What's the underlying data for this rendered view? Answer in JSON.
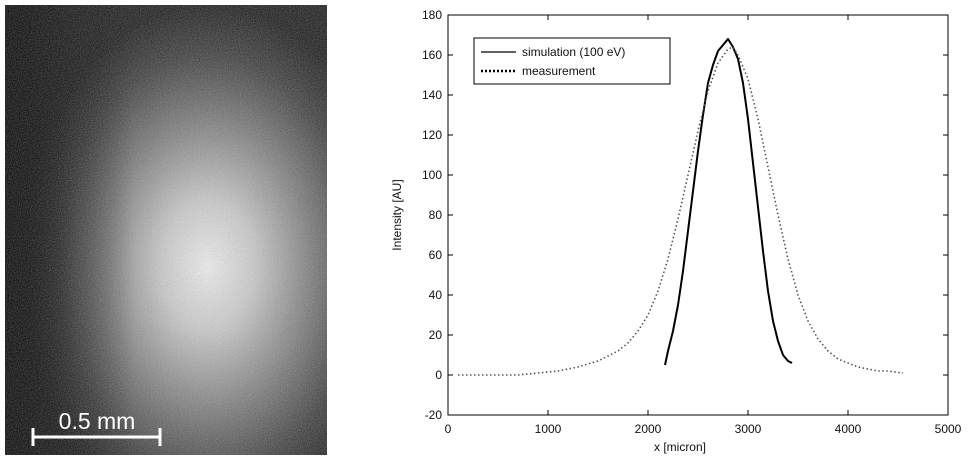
{
  "image_panel": {
    "scale_bar_label": "0.5 mm",
    "colors": {
      "background": "#0a0a0a",
      "glow": "#f2f2f2",
      "scale_bar": "#ffffff"
    }
  },
  "chart_data": {
    "type": "line",
    "xlabel": "x [micron]",
    "ylabel": "Intensity [AU]",
    "xlim": [
      0,
      5000
    ],
    "ylim": [
      -20,
      180
    ],
    "xticks": [
      0,
      1000,
      2000,
      3000,
      4000,
      5000
    ],
    "yticks": [
      -20,
      0,
      20,
      40,
      60,
      80,
      100,
      120,
      140,
      160,
      180
    ],
    "grid": false,
    "legend_position": "top-left",
    "series": [
      {
        "name": "simulation (100 eV)",
        "style": "solid",
        "color": "#000000",
        "x": [
          2170,
          2200,
          2250,
          2300,
          2350,
          2400,
          2450,
          2500,
          2550,
          2600,
          2650,
          2700,
          2750,
          2800,
          2850,
          2900,
          2950,
          3000,
          3050,
          3100,
          3150,
          3200,
          3250,
          3300,
          3350,
          3400,
          3440
        ],
        "y": [
          5,
          12,
          22,
          35,
          52,
          72,
          92,
          112,
          130,
          146,
          155,
          162,
          165,
          168,
          164,
          158,
          146,
          128,
          106,
          84,
          62,
          42,
          27,
          17,
          10,
          7,
          6
        ]
      },
      {
        "name": "measurement",
        "style": "dotted",
        "color": "#555555",
        "x": [
          100,
          300,
          500,
          700,
          900,
          1100,
          1300,
          1500,
          1700,
          1800,
          1900,
          2000,
          2100,
          2200,
          2300,
          2400,
          2500,
          2600,
          2700,
          2800,
          2850,
          2900,
          3000,
          3100,
          3200,
          3300,
          3400,
          3500,
          3600,
          3700,
          3800,
          3900,
          4000,
          4100,
          4200,
          4300,
          4400,
          4550
        ],
        "y": [
          0,
          0,
          0,
          0,
          1,
          2,
          4,
          7,
          12,
          16,
          22,
          30,
          42,
          58,
          78,
          100,
          122,
          142,
          156,
          163,
          164,
          160,
          148,
          128,
          104,
          80,
          58,
          40,
          27,
          18,
          12,
          8,
          6,
          4,
          3,
          2,
          2,
          1
        ]
      }
    ]
  }
}
